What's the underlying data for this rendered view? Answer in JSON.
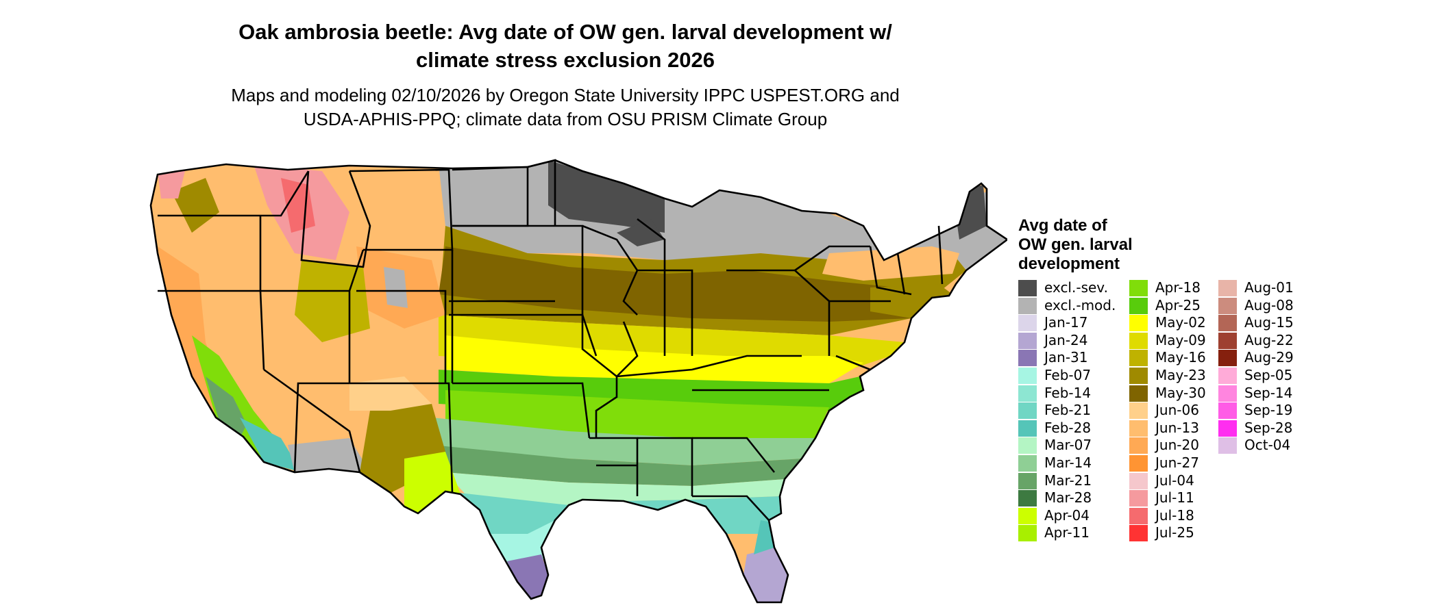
{
  "title": {
    "line1": "Oak ambrosia beetle: Avg date of OW gen. larval development w/",
    "line2": "climate stress exclusion 2026"
  },
  "subtitle": {
    "line1": "Maps and modeling 02/10/2026 by Oregon State University IPPC USPEST.ORG and",
    "line2": "USDA-APHIS-PPQ; climate data from OSU PRISM Climate Group"
  },
  "legend": {
    "title_lines": [
      "Avg date of",
      "OW gen. larval",
      "development"
    ],
    "columns": [
      [
        {
          "label": "excl.-sev.",
          "color": "#4d4d4d"
        },
        {
          "label": "excl.-mod.",
          "color": "#b3b3b3"
        },
        {
          "label": "Jan-17",
          "color": "#dcd5ea"
        },
        {
          "label": "Jan-24",
          "color": "#b4a6d2"
        },
        {
          "label": "Jan-31",
          "color": "#8a76b4"
        },
        {
          "label": "Feb-07",
          "color": "#a6f5e3"
        },
        {
          "label": "Feb-14",
          "color": "#8de6d2"
        },
        {
          "label": "Feb-21",
          "color": "#70d6c4"
        },
        {
          "label": "Feb-28",
          "color": "#55c5b8"
        },
        {
          "label": "Mar-07",
          "color": "#b4f5c4"
        },
        {
          "label": "Mar-14",
          "color": "#8fcf95"
        },
        {
          "label": "Mar-21",
          "color": "#67a467"
        },
        {
          "label": "Mar-28",
          "color": "#3d7a41"
        },
        {
          "label": "Apr-04",
          "color": "#ccff00"
        },
        {
          "label": "Apr-11",
          "color": "#a8ef00"
        }
      ],
      [
        {
          "label": "Apr-18",
          "color": "#80dd0a"
        },
        {
          "label": "Apr-25",
          "color": "#58cc0c"
        },
        {
          "label": "May-02",
          "color": "#ffff00"
        },
        {
          "label": "May-09",
          "color": "#dfdb00"
        },
        {
          "label": "May-16",
          "color": "#bfb200"
        },
        {
          "label": "May-23",
          "color": "#9f8a00"
        },
        {
          "label": "May-30",
          "color": "#7f6400"
        },
        {
          "label": "Jun-06",
          "color": "#ffd08a"
        },
        {
          "label": "Jun-13",
          "color": "#ffbd6e"
        },
        {
          "label": "Jun-20",
          "color": "#ffa954"
        },
        {
          "label": "Jun-27",
          "color": "#ff9433"
        },
        {
          "label": "Jul-04",
          "color": "#f5c7cc"
        },
        {
          "label": "Jul-11",
          "color": "#f59a9e"
        },
        {
          "label": "Jul-18",
          "color": "#f56b6e"
        },
        {
          "label": "Jul-25",
          "color": "#ff3333"
        }
      ],
      [
        {
          "label": "Aug-01",
          "color": "#e8b4a8"
        },
        {
          "label": "Aug-08",
          "color": "#cc8c7e"
        },
        {
          "label": "Aug-15",
          "color": "#b36656"
        },
        {
          "label": "Aug-22",
          "color": "#9e4030"
        },
        {
          "label": "Aug-29",
          "color": "#85200e"
        },
        {
          "label": "Sep-05",
          "color": "#ffabd8"
        },
        {
          "label": "Sep-14",
          "color": "#ff85df"
        },
        {
          "label": "Sep-19",
          "color": "#ff5ce6"
        },
        {
          "label": "Sep-28",
          "color": "#ff2ef0"
        },
        {
          "label": "Oct-04",
          "color": "#dfbfe6"
        }
      ]
    ]
  }
}
